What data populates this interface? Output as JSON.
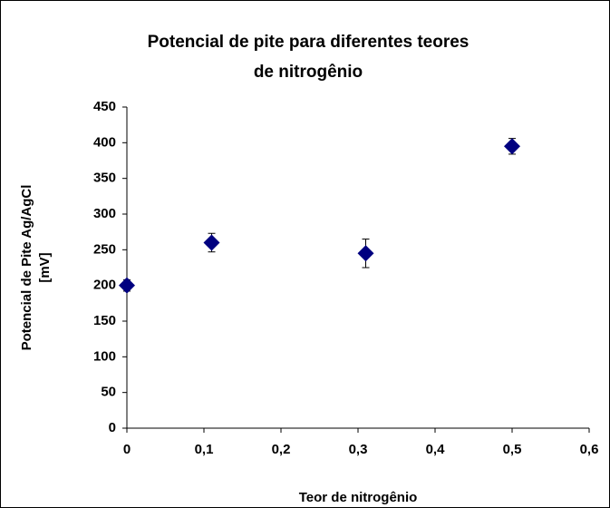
{
  "chart_data": {
    "type": "scatter",
    "title": [
      "Potencial de pite para diferentes teores",
      "de nitrogênio"
    ],
    "xlabel": "Teor de nitrogênio",
    "ylabel": [
      "Potencial de Pite Ag/AgCl",
      "[mV]"
    ],
    "x": [
      0,
      0.11,
      0.31,
      0.5
    ],
    "values": [
      200,
      260,
      245,
      395
    ],
    "errors": [
      8,
      13,
      20,
      11
    ],
    "color": "#000080",
    "xlim": [
      0,
      0.6
    ],
    "xticks": [
      0,
      {
        "value": 0.1,
        "label": "0,1"
      },
      {
        "value": 0.2,
        "label": "0,2"
      },
      {
        "value": 0.3,
        "label": "0,3"
      },
      {
        "value": 0.4,
        "label": "0,4"
      },
      {
        "value": 0.5,
        "label": "0,5"
      },
      {
        "value": 0.6,
        "label": "0,6"
      }
    ],
    "ylim": [
      0,
      450
    ],
    "yticks": [
      0,
      50,
      100,
      150,
      200,
      250,
      300,
      350,
      400,
      450
    ]
  }
}
